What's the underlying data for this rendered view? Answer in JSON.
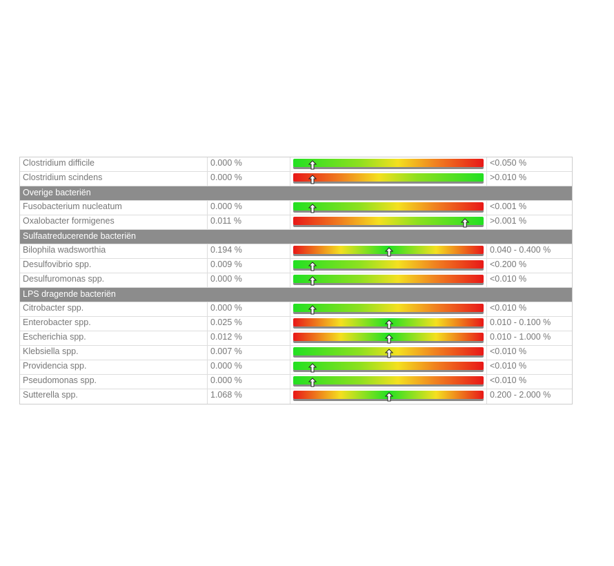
{
  "rows": [
    {
      "name": "Clostridium difficile",
      "value": "0.000 %",
      "scale": "green-red",
      "marker": 10,
      "reference": "<0.050 %"
    },
    {
      "name": "Clostridium scindens",
      "value": "0.000 %",
      "scale": "red-green",
      "marker": 10,
      "reference": ">0.010 %"
    },
    {
      "header": "Overige bacteriën"
    },
    {
      "name": "Fusobacterium nucleatum",
      "value": "0.000 %",
      "scale": "green-red",
      "marker": 10,
      "reference": "<0.001 %"
    },
    {
      "name": "Oxalobacter formigenes",
      "value": "0.011 %",
      "scale": "red-green",
      "marker": 90,
      "reference": ">0.001 %"
    },
    {
      "header": "Sulfaatreducerende bacteriën"
    },
    {
      "name": "Bilophila wadsworthia",
      "value": "0.194 %",
      "scale": "red-green-red",
      "marker": 50,
      "reference": "0.040 - 0.400 %"
    },
    {
      "name": "Desulfovibrio spp.",
      "value": "0.009 %",
      "scale": "green-red",
      "marker": 10,
      "reference": "<0.200 %"
    },
    {
      "name": "Desulfuromonas spp.",
      "value": "0.000 %",
      "scale": "green-red",
      "marker": 10,
      "reference": "<0.010 %"
    },
    {
      "header": "LPS dragende bacteriën"
    },
    {
      "name": "Citrobacter spp.",
      "value": "0.000 %",
      "scale": "green-red",
      "marker": 10,
      "reference": "<0.010 %"
    },
    {
      "name": "Enterobacter spp.",
      "value": "0.025 %",
      "scale": "red-green-red",
      "marker": 50,
      "reference": "0.010 - 0.100 %"
    },
    {
      "name": "Escherichia spp.",
      "value": "0.012 %",
      "scale": "red-green-red",
      "marker": 50,
      "reference": "0.010 - 1.000 %"
    },
    {
      "name": "Klebsiella spp.",
      "value": "0.007 %",
      "scale": "green-red",
      "marker": 50,
      "reference": "<0.010 %"
    },
    {
      "name": "Providencia spp.",
      "value": "0.000 %",
      "scale": "green-red",
      "marker": 10,
      "reference": "<0.010 %"
    },
    {
      "name": "Pseudomonas spp.",
      "value": "0.000 %",
      "scale": "green-red",
      "marker": 10,
      "reference": "<0.010 %"
    },
    {
      "name": "Sutterella spp.",
      "value": "1.068 %",
      "scale": "red-green-red",
      "marker": 50,
      "reference": "0.200 - 2.000 %"
    }
  ]
}
